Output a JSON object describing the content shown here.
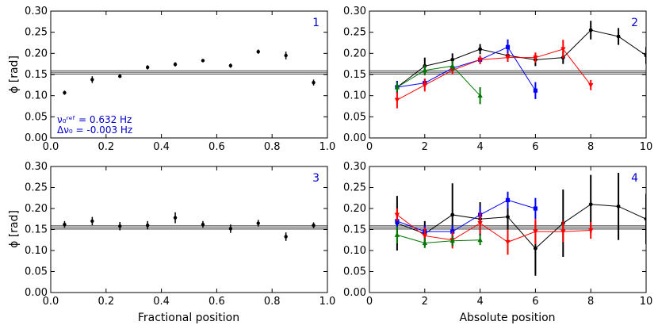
{
  "colors": {
    "black": "#000000",
    "blue": "#0000ff",
    "red": "#ff0000",
    "green": "#007700",
    "ref": "#888888",
    "text_blue": "#0000cc"
  },
  "axis_labels": {
    "ylabel": "ϕ [rad]",
    "xlabel_left": "Fractional position",
    "xlabel_right": "Absolute position"
  },
  "annotation": {
    "line1": "ν₀ʳᵉᶠ = 0.632 Hz",
    "line2": "Δν₀ = -0.003 Hz"
  },
  "chart_data": [
    {
      "panel": "1",
      "type": "scatter",
      "xlim": [
        0.0,
        1.0
      ],
      "ylim": [
        0.0,
        0.3
      ],
      "xticks": [
        "0.0",
        "0.2",
        "0.4",
        "0.6",
        "0.8",
        "1.0"
      ],
      "yticks": [
        "0.00",
        "0.05",
        "0.10",
        "0.15",
        "0.20",
        "0.25",
        "0.30"
      ],
      "reference_band": {
        "center": 0.155,
        "halfwidth": 0.004
      },
      "series": [
        {
          "name": "all",
          "color": "#000000",
          "marker": "circle",
          "connect": false,
          "x": [
            0.05,
            0.15,
            0.25,
            0.35,
            0.45,
            0.55,
            0.65,
            0.75,
            0.85,
            0.95
          ],
          "y": [
            0.107,
            0.138,
            0.146,
            0.167,
            0.174,
            0.183,
            0.171,
            0.204,
            0.195,
            0.131
          ],
          "err": [
            0.005,
            0.008,
            0.003,
            0.005,
            0.005,
            0.003,
            0.005,
            0.005,
            0.009,
            0.007
          ]
        }
      ]
    },
    {
      "panel": "2",
      "type": "line",
      "xlim": [
        0,
        10
      ],
      "ylim": [
        0.0,
        0.3
      ],
      "xticks": [
        "0",
        "2",
        "4",
        "6",
        "8",
        "10"
      ],
      "yticks": [
        "0.00",
        "0.05",
        "0.10",
        "0.15",
        "0.20",
        "0.25",
        "0.30"
      ],
      "reference_band": {
        "center": 0.155,
        "halfwidth": 0.004
      },
      "series": [
        {
          "name": "black",
          "color": "#000000",
          "marker": "circle",
          "connect": true,
          "x": [
            1,
            2,
            3,
            4,
            5,
            6,
            7,
            8,
            9,
            10
          ],
          "y": [
            0.12,
            0.17,
            0.185,
            0.21,
            0.195,
            0.185,
            0.19,
            0.255,
            0.24,
            0.195
          ],
          "err": [
            0.015,
            0.02,
            0.015,
            0.012,
            0.012,
            0.015,
            0.015,
            0.022,
            0.02,
            0.02
          ]
        },
        {
          "name": "blue",
          "color": "#0000ff",
          "marker": "square",
          "connect": true,
          "x": [
            1,
            2,
            3,
            4,
            5,
            6
          ],
          "y": [
            0.12,
            0.13,
            0.165,
            0.185,
            0.215,
            0.112
          ],
          "err": [
            0.015,
            0.01,
            0.01,
            0.01,
            0.018,
            0.02
          ]
        },
        {
          "name": "red",
          "color": "#ff0000",
          "marker": "triangle-down",
          "connect": true,
          "x": [
            1,
            2,
            3,
            4,
            5,
            6,
            7,
            8
          ],
          "y": [
            0.09,
            0.125,
            0.16,
            0.185,
            0.19,
            0.19,
            0.21,
            0.125
          ],
          "err": [
            0.02,
            0.015,
            0.01,
            0.01,
            0.01,
            0.012,
            0.022,
            0.012
          ]
        },
        {
          "name": "green",
          "color": "#007700",
          "marker": "triangle-up",
          "connect": true,
          "x": [
            1,
            2,
            3,
            4
          ],
          "y": [
            0.12,
            0.16,
            0.17,
            0.1
          ],
          "err": [
            0.012,
            0.012,
            0.012,
            0.02
          ]
        }
      ]
    },
    {
      "panel": "3",
      "type": "scatter",
      "xlim": [
        0.0,
        1.0
      ],
      "ylim": [
        0.0,
        0.3
      ],
      "xticks": [
        "0.0",
        "0.2",
        "0.4",
        "0.6",
        "0.8",
        "1.0"
      ],
      "yticks": [
        "0.00",
        "0.05",
        "0.10",
        "0.15",
        "0.20",
        "0.25",
        "0.30"
      ],
      "reference_band": {
        "center": 0.155,
        "halfwidth": 0.004
      },
      "series": [
        {
          "name": "all",
          "color": "#000000",
          "marker": "circle",
          "connect": false,
          "x": [
            0.05,
            0.15,
            0.25,
            0.35,
            0.45,
            0.55,
            0.65,
            0.75,
            0.85,
            0.95
          ],
          "y": [
            0.162,
            0.17,
            0.158,
            0.16,
            0.178,
            0.162,
            0.152,
            0.165,
            0.133,
            0.16
          ],
          "err": [
            0.008,
            0.01,
            0.01,
            0.01,
            0.013,
            0.008,
            0.01,
            0.008,
            0.01,
            0.007
          ]
        }
      ]
    },
    {
      "panel": "4",
      "type": "line",
      "xlim": [
        0,
        10
      ],
      "ylim": [
        0.0,
        0.3
      ],
      "xticks": [
        "0",
        "2",
        "4",
        "6",
        "8",
        "10"
      ],
      "yticks": [
        "0.00",
        "0.05",
        "0.10",
        "0.15",
        "0.20",
        "0.25",
        "0.30"
      ],
      "reference_band": {
        "center": 0.155,
        "halfwidth": 0.004
      },
      "series": [
        {
          "name": "black",
          "color": "#000000",
          "marker": "circle",
          "connect": true,
          "x": [
            1,
            2,
            3,
            4,
            5,
            6,
            7,
            8,
            9,
            10
          ],
          "y": [
            0.165,
            0.14,
            0.185,
            0.175,
            0.18,
            0.105,
            0.165,
            0.21,
            0.205,
            0.175
          ],
          "err": [
            0.065,
            0.03,
            0.075,
            0.04,
            0.045,
            0.065,
            0.08,
            0.07,
            0.08,
            0.06
          ]
        },
        {
          "name": "blue",
          "color": "#0000ff",
          "marker": "square",
          "connect": true,
          "x": [
            1,
            2,
            3,
            4,
            5,
            6
          ],
          "y": [
            0.17,
            0.145,
            0.145,
            0.185,
            0.22,
            0.2
          ],
          "err": [
            0.02,
            0.015,
            0.015,
            0.02,
            0.02,
            0.025
          ]
        },
        {
          "name": "red",
          "color": "#ff0000",
          "marker": "triangle-down",
          "connect": true,
          "x": [
            1,
            2,
            3,
            4,
            5,
            6,
            7,
            8
          ],
          "y": [
            0.185,
            0.135,
            0.125,
            0.165,
            0.12,
            0.145,
            0.145,
            0.148
          ],
          "err": [
            0.015,
            0.02,
            0.02,
            0.025,
            0.03,
            0.03,
            0.025,
            0.02
          ]
        },
        {
          "name": "green",
          "color": "#007700",
          "marker": "triangle-up",
          "connect": true,
          "x": [
            1,
            2,
            3,
            4
          ],
          "y": [
            0.137,
            0.118,
            0.123,
            0.125
          ],
          "err": [
            0.02,
            0.012,
            0.012,
            0.012
          ]
        }
      ]
    }
  ]
}
